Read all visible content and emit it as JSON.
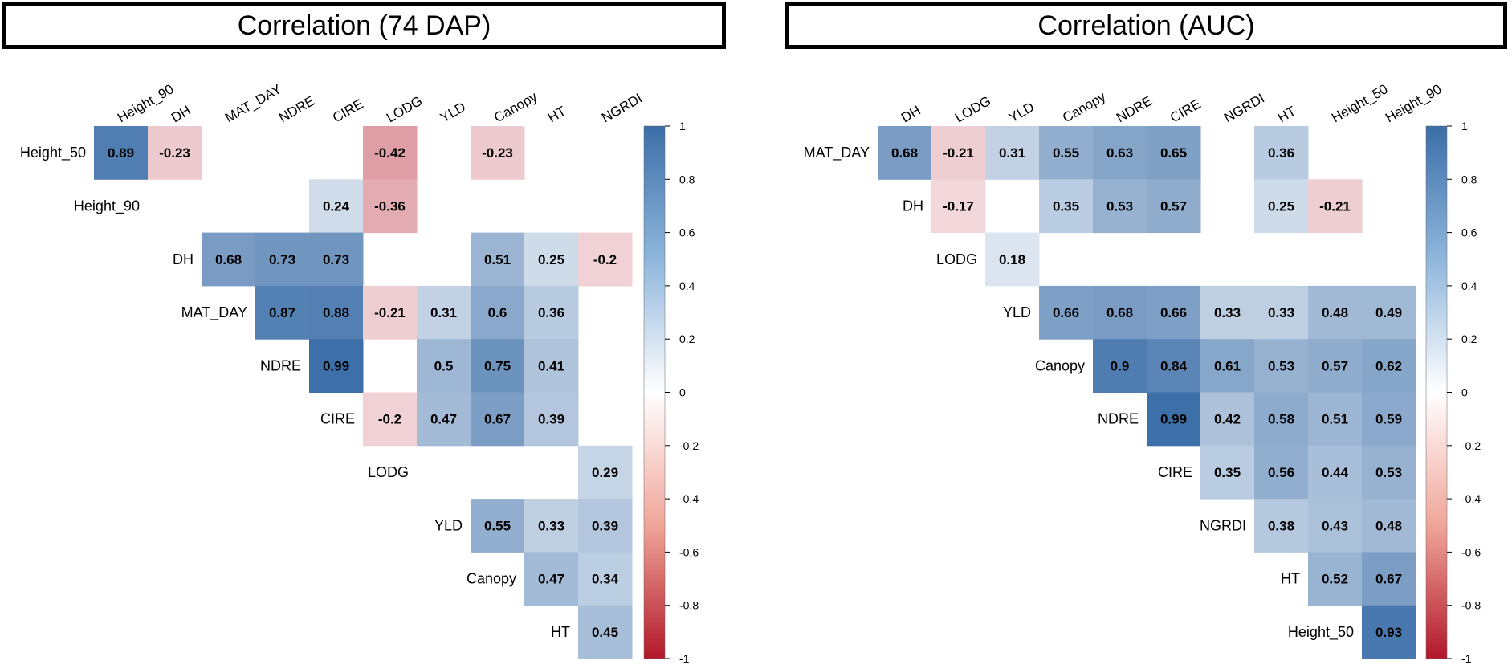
{
  "chart_data": [
    {
      "type": "heatmap",
      "title": "Correlation (74 DAP)",
      "rows": [
        "Height_50",
        "Height_90",
        "DH",
        "MAT_DAY",
        "NDRE",
        "CIRE",
        "LODG",
        "YLD",
        "Canopy",
        "HT"
      ],
      "columns": [
        "Height_90",
        "DH",
        "MAT_DAY",
        "NDRE",
        "CIRE",
        "LODG",
        "YLD",
        "Canopy",
        "HT",
        "NGRDI"
      ],
      "cells": [
        {
          "row": "Height_50",
          "col": "Height_90",
          "value": 0.89
        },
        {
          "row": "Height_50",
          "col": "DH",
          "value": -0.23
        },
        {
          "row": "Height_50",
          "col": "LODG",
          "value": -0.42
        },
        {
          "row": "Height_50",
          "col": "Canopy",
          "value": -0.23
        },
        {
          "row": "Height_90",
          "col": "CIRE",
          "value": 0.24
        },
        {
          "row": "Height_90",
          "col": "LODG",
          "value": -0.36
        },
        {
          "row": "DH",
          "col": "MAT_DAY",
          "value": 0.68
        },
        {
          "row": "DH",
          "col": "NDRE",
          "value": 0.73
        },
        {
          "row": "DH",
          "col": "CIRE",
          "value": 0.73
        },
        {
          "row": "DH",
          "col": "Canopy",
          "value": 0.51
        },
        {
          "row": "DH",
          "col": "HT",
          "value": 0.25
        },
        {
          "row": "DH",
          "col": "NGRDI",
          "value": -0.2
        },
        {
          "row": "MAT_DAY",
          "col": "NDRE",
          "value": 0.87
        },
        {
          "row": "MAT_DAY",
          "col": "CIRE",
          "value": 0.88
        },
        {
          "row": "MAT_DAY",
          "col": "LODG",
          "value": -0.21
        },
        {
          "row": "MAT_DAY",
          "col": "YLD",
          "value": 0.31
        },
        {
          "row": "MAT_DAY",
          "col": "Canopy",
          "value": 0.6
        },
        {
          "row": "MAT_DAY",
          "col": "HT",
          "value": 0.36
        },
        {
          "row": "NDRE",
          "col": "CIRE",
          "value": 0.99
        },
        {
          "row": "NDRE",
          "col": "YLD",
          "value": 0.5
        },
        {
          "row": "NDRE",
          "col": "Canopy",
          "value": 0.75
        },
        {
          "row": "NDRE",
          "col": "HT",
          "value": 0.41
        },
        {
          "row": "CIRE",
          "col": "LODG",
          "value": -0.2
        },
        {
          "row": "CIRE",
          "col": "YLD",
          "value": 0.47
        },
        {
          "row": "CIRE",
          "col": "Canopy",
          "value": 0.67
        },
        {
          "row": "CIRE",
          "col": "HT",
          "value": 0.39
        },
        {
          "row": "LODG",
          "col": "NGRDI",
          "value": 0.29
        },
        {
          "row": "YLD",
          "col": "Canopy",
          "value": 0.55
        },
        {
          "row": "YLD",
          "col": "HT",
          "value": 0.33
        },
        {
          "row": "YLD",
          "col": "NGRDI",
          "value": 0.39
        },
        {
          "row": "Canopy",
          "col": "HT",
          "value": 0.47
        },
        {
          "row": "Canopy",
          "col": "NGRDI",
          "value": 0.34
        },
        {
          "row": "HT",
          "col": "NGRDI",
          "value": 0.45
        }
      ],
      "colorbar": {
        "min": -1,
        "max": 1,
        "ticks": [
          "1",
          "0.8",
          "0.6",
          "0.4",
          "0.2",
          "0",
          "-0.2",
          "-0.4",
          "-0.6",
          "-0.8",
          "-1"
        ]
      }
    },
    {
      "type": "heatmap",
      "title": "Correlation (AUC)",
      "rows": [
        "MAT_DAY",
        "DH",
        "LODG",
        "YLD",
        "Canopy",
        "NDRE",
        "CIRE",
        "NGRDI",
        "HT",
        "Height_50"
      ],
      "columns": [
        "DH",
        "LODG",
        "YLD",
        "Canopy",
        "NDRE",
        "CIRE",
        "NGRDI",
        "HT",
        "Height_50",
        "Height_90"
      ],
      "cells": [
        {
          "row": "MAT_DAY",
          "col": "DH",
          "value": 0.68
        },
        {
          "row": "MAT_DAY",
          "col": "LODG",
          "value": -0.21
        },
        {
          "row": "MAT_DAY",
          "col": "YLD",
          "value": 0.31
        },
        {
          "row": "MAT_DAY",
          "col": "Canopy",
          "value": 0.55
        },
        {
          "row": "MAT_DAY",
          "col": "NDRE",
          "value": 0.63
        },
        {
          "row": "MAT_DAY",
          "col": "CIRE",
          "value": 0.65
        },
        {
          "row": "MAT_DAY",
          "col": "HT",
          "value": 0.36
        },
        {
          "row": "DH",
          "col": "LODG",
          "value": -0.17
        },
        {
          "row": "DH",
          "col": "Canopy",
          "value": 0.35
        },
        {
          "row": "DH",
          "col": "NDRE",
          "value": 0.53
        },
        {
          "row": "DH",
          "col": "CIRE",
          "value": 0.57
        },
        {
          "row": "DH",
          "col": "HT",
          "value": 0.25
        },
        {
          "row": "DH",
          "col": "Height_50",
          "value": -0.21
        },
        {
          "row": "LODG",
          "col": "YLD",
          "value": 0.18
        },
        {
          "row": "YLD",
          "col": "Canopy",
          "value": 0.66
        },
        {
          "row": "YLD",
          "col": "NDRE",
          "value": 0.68
        },
        {
          "row": "YLD",
          "col": "CIRE",
          "value": 0.66
        },
        {
          "row": "YLD",
          "col": "NGRDI",
          "value": 0.33
        },
        {
          "row": "YLD",
          "col": "HT",
          "value": 0.33
        },
        {
          "row": "YLD",
          "col": "Height_50",
          "value": 0.48
        },
        {
          "row": "YLD",
          "col": "Height_90",
          "value": 0.49
        },
        {
          "row": "Canopy",
          "col": "NDRE",
          "value": 0.9
        },
        {
          "row": "Canopy",
          "col": "CIRE",
          "value": 0.84
        },
        {
          "row": "Canopy",
          "col": "NGRDI",
          "value": 0.61
        },
        {
          "row": "Canopy",
          "col": "HT",
          "value": 0.53
        },
        {
          "row": "Canopy",
          "col": "Height_50",
          "value": 0.57
        },
        {
          "row": "Canopy",
          "col": "Height_90",
          "value": 0.62
        },
        {
          "row": "NDRE",
          "col": "CIRE",
          "value": 0.99
        },
        {
          "row": "NDRE",
          "col": "NGRDI",
          "value": 0.42
        },
        {
          "row": "NDRE",
          "col": "HT",
          "value": 0.58
        },
        {
          "row": "NDRE",
          "col": "Height_50",
          "value": 0.51
        },
        {
          "row": "NDRE",
          "col": "Height_90",
          "value": 0.59
        },
        {
          "row": "CIRE",
          "col": "NGRDI",
          "value": 0.35
        },
        {
          "row": "CIRE",
          "col": "HT",
          "value": 0.56
        },
        {
          "row": "CIRE",
          "col": "Height_50",
          "value": 0.44
        },
        {
          "row": "CIRE",
          "col": "Height_90",
          "value": 0.53
        },
        {
          "row": "NGRDI",
          "col": "HT",
          "value": 0.38
        },
        {
          "row": "NGRDI",
          "col": "Height_50",
          "value": 0.43
        },
        {
          "row": "NGRDI",
          "col": "Height_90",
          "value": 0.48
        },
        {
          "row": "HT",
          "col": "Height_50",
          "value": 0.52
        },
        {
          "row": "HT",
          "col": "Height_90",
          "value": 0.67
        },
        {
          "row": "Height_50",
          "col": "Height_90",
          "value": 0.93
        }
      ],
      "colorbar": {
        "min": -1,
        "max": 1,
        "ticks": [
          "1",
          "0.8",
          "0.6",
          "0.4",
          "0.2",
          "0",
          "-0.2",
          "-0.4",
          "-0.6",
          "-0.8",
          "-1"
        ]
      }
    }
  ],
  "colors": {
    "positive": "#3b6ea8",
    "neutral": "#ffffff",
    "negative": "#b2182b"
  }
}
